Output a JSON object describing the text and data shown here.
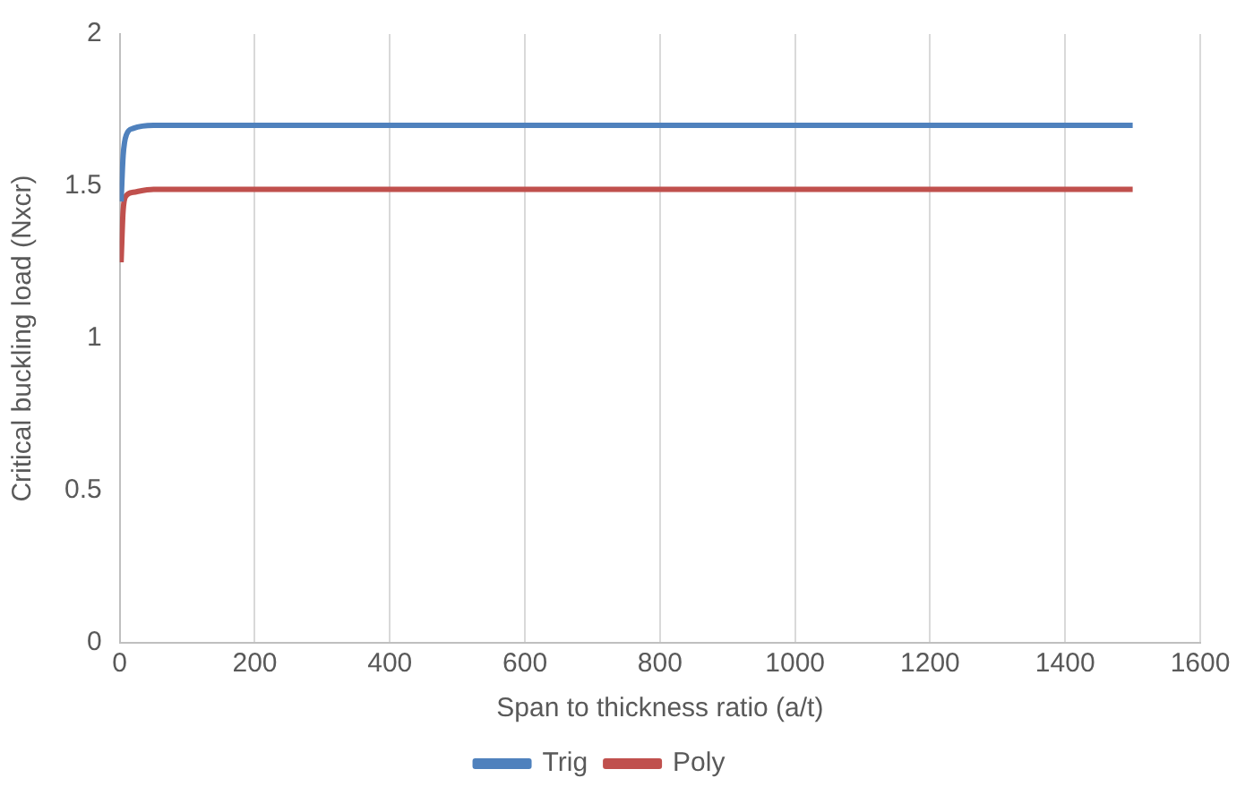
{
  "chart_data": {
    "type": "line",
    "xlabel": "Span to thickness ratio (a/t)",
    "ylabel": "Critical buckling load (Nxcr)",
    "x": [
      2,
      5,
      10,
      20,
      50,
      100,
      500,
      1000,
      1500
    ],
    "series": [
      {
        "name": "Trig",
        "color": "#4f81bd",
        "values": [
          1.45,
          1.6,
          1.67,
          1.69,
          1.7,
          1.7,
          1.7,
          1.7,
          1.7
        ]
      },
      {
        "name": "Poly",
        "color": "#c0504d",
        "values": [
          1.25,
          1.42,
          1.47,
          1.48,
          1.49,
          1.49,
          1.49,
          1.49,
          1.49
        ]
      }
    ],
    "xlim": [
      0,
      1600
    ],
    "xticks": [
      0,
      200,
      400,
      600,
      800,
      1000,
      1200,
      1400,
      1600
    ],
    "ylim": [
      0,
      2
    ],
    "yticks": [
      0,
      0.5,
      1,
      1.5,
      2
    ],
    "grid": "x",
    "legend": "bottom",
    "marker": "none",
    "line_style": "solid"
  }
}
